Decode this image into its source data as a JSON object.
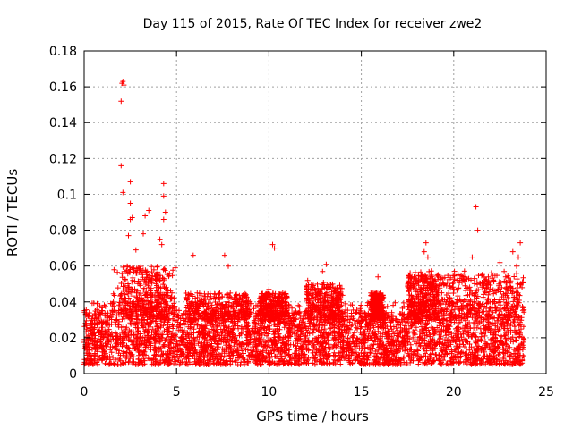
{
  "chart_data": {
    "type": "scatter",
    "title": "Day 115 of 2015, Rate Of TEC Index for receiver zwe2",
    "xlabel": "GPS time / hours",
    "ylabel": "ROTI / TECUs",
    "xlim": [
      0,
      25
    ],
    "ylim": [
      0,
      0.18
    ],
    "xticks": [
      0,
      5,
      10,
      15,
      20,
      25
    ],
    "xtick_labels": [
      "0",
      "5",
      "10",
      "15",
      "20",
      "25"
    ],
    "yticks": [
      0,
      0.02,
      0.04,
      0.06,
      0.08,
      0.1,
      0.12,
      0.14,
      0.16,
      0.18
    ],
    "ytick_labels": [
      "0",
      "0.02",
      "0.04",
      "0.06",
      "0.08",
      "0.1",
      "0.12",
      "0.14",
      "0.16",
      "0.18"
    ],
    "grid": true,
    "marker": "+",
    "color": "#ff0000",
    "series": [
      {
        "name": "ROTI",
        "x_range": [
          0,
          23.8
        ],
        "dense_band": [
          0.005,
          0.035
        ],
        "notable_points": [
          [
            2.1,
            0.163
          ],
          [
            2.15,
            0.161
          ],
          [
            2.05,
            0.162
          ],
          [
            2.0,
            0.152
          ],
          [
            2.0,
            0.116
          ],
          [
            2.1,
            0.101
          ],
          [
            2.5,
            0.107
          ],
          [
            2.5,
            0.095
          ],
          [
            2.6,
            0.087
          ],
          [
            2.5,
            0.086
          ],
          [
            3.3,
            0.088
          ],
          [
            3.5,
            0.091
          ],
          [
            3.2,
            0.078
          ],
          [
            4.3,
            0.106
          ],
          [
            4.3,
            0.099
          ],
          [
            4.4,
            0.09
          ],
          [
            4.3,
            0.086
          ],
          [
            4.1,
            0.075
          ],
          [
            4.2,
            0.072
          ],
          [
            2.4,
            0.077
          ],
          [
            2.8,
            0.069
          ],
          [
            5.9,
            0.066
          ],
          [
            7.6,
            0.066
          ],
          [
            7.8,
            0.06
          ],
          [
            10.2,
            0.072
          ],
          [
            10.3,
            0.07
          ],
          [
            10.0,
            0.047
          ],
          [
            13.1,
            0.061
          ],
          [
            12.9,
            0.057
          ],
          [
            12.1,
            0.052
          ],
          [
            15.9,
            0.054
          ],
          [
            18.5,
            0.073
          ],
          [
            18.4,
            0.068
          ],
          [
            18.6,
            0.065
          ],
          [
            21.2,
            0.093
          ],
          [
            21.3,
            0.08
          ],
          [
            21.0,
            0.065
          ],
          [
            22.5,
            0.062
          ],
          [
            23.2,
            0.068
          ],
          [
            23.6,
            0.073
          ],
          [
            23.5,
            0.065
          ],
          [
            23.4,
            0.06
          ]
        ]
      }
    ]
  }
}
